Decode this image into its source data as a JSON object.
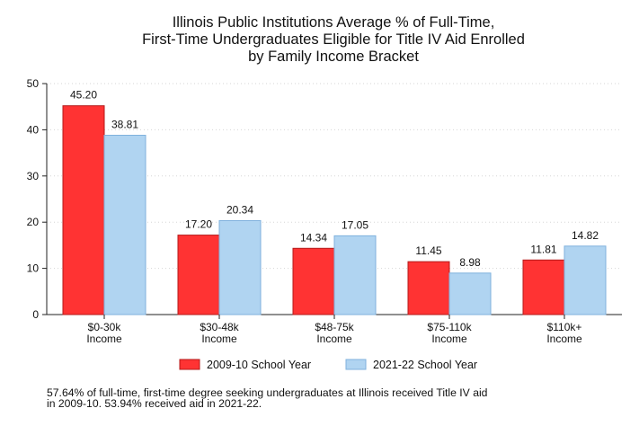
{
  "chart_data": {
    "type": "bar",
    "title": "Illinois Public Institutions Average % of Full-Time, First-Time Undergraduates Eligible for Title IV Aid Enrolled by Family Income Bracket",
    "title_lines": [
      "Illinois Public Institutions Average % of Full-Time,",
      "First-Time Undergraduates Eligible for Title IV Aid Enrolled",
      "by Family Income Bracket"
    ],
    "categories": [
      [
        "$0-30k",
        "Income"
      ],
      [
        "$30-48k",
        "Income"
      ],
      [
        "$48-75k",
        "Income"
      ],
      [
        "$75-110k",
        "Income"
      ],
      [
        "$110k+",
        "Income"
      ]
    ],
    "series": [
      {
        "name": "2009-10 School Year",
        "color": "#ff3333",
        "values": [
          45.2,
          17.2,
          14.34,
          11.45,
          11.81
        ],
        "labels": [
          "45.20",
          "17.20",
          "14.34",
          "11.45",
          "11.81"
        ]
      },
      {
        "name": "2021-22 School Year",
        "color": "#b0d4f1",
        "values": [
          38.81,
          20.34,
          17.05,
          8.98,
          14.82
        ],
        "labels": [
          "38.81",
          "20.34",
          "17.05",
          "8.98",
          "14.82"
        ]
      }
    ],
    "ylim": [
      0,
      50
    ],
    "yticks": [
      0,
      10,
      20,
      30,
      40,
      50
    ],
    "xlabel": "",
    "ylabel": "",
    "grid": true,
    "legend_position": "bottom"
  },
  "footnote_lines": [
    "57.64% of full-time, first-time degree seeking undergraduates at Illinois received Title IV aid",
    "in 2009-10. 53.94% received aid in 2021-22."
  ]
}
